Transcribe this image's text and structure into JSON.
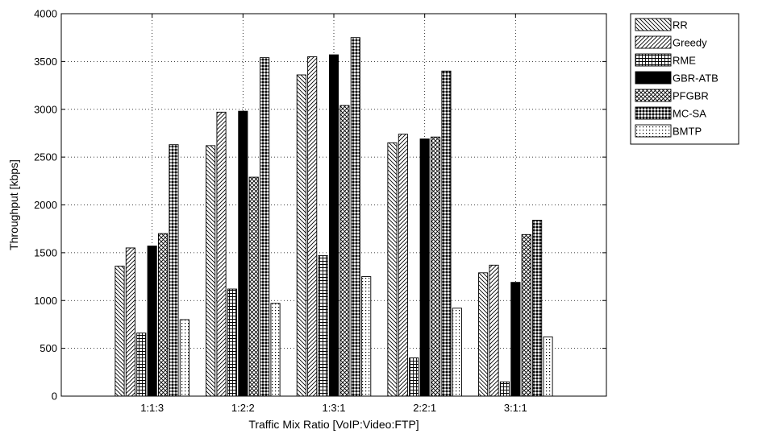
{
  "chart_data": {
    "type": "bar",
    "title": "",
    "xlabel": "Traffic Mix Ratio [VoIP:Video:FTP]",
    "ylabel": "Throughput [kbps]",
    "categories": [
      "1:1:3",
      "1:2:2",
      "1:3:1",
      "2:2:1",
      "3:1:1"
    ],
    "ylim": [
      0,
      4000
    ],
    "yticks": [
      0,
      500,
      1000,
      1500,
      2000,
      2500,
      3000,
      3500,
      4000
    ],
    "grid": true,
    "legend_position": "outside-top-right",
    "series": [
      {
        "name": "RR",
        "pattern": "backslash",
        "values": [
          1360,
          2620,
          3360,
          2650,
          1290
        ]
      },
      {
        "name": "Greedy",
        "pattern": "slash",
        "values": [
          1550,
          2970,
          3550,
          2740,
          1370
        ]
      },
      {
        "name": "RME",
        "pattern": "grid",
        "values": [
          660,
          1120,
          1470,
          400,
          150
        ]
      },
      {
        "name": "GBR-ATB",
        "pattern": "solid",
        "values": [
          1570,
          2980,
          3570,
          2690,
          1190
        ]
      },
      {
        "name": "PFGBR",
        "pattern": "crosshatch",
        "values": [
          1700,
          2290,
          3040,
          2710,
          1690
        ]
      },
      {
        "name": "MC-SA",
        "pattern": "diamond",
        "values": [
          2630,
          3540,
          3750,
          3400,
          1840
        ]
      },
      {
        "name": "BMTP",
        "pattern": "dots",
        "values": [
          800,
          970,
          1250,
          920,
          620
        ]
      }
    ]
  }
}
